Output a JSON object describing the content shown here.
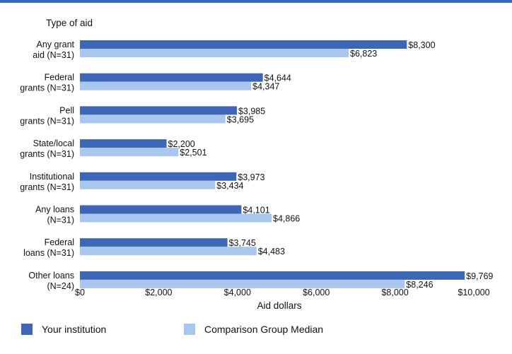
{
  "chart_data": {
    "type": "bar",
    "orientation": "horizontal",
    "title": "",
    "y_axis_title": "Type of aid",
    "xlabel": "Aid dollars",
    "xlim": [
      0,
      10000
    ],
    "x_ticks": [
      0,
      2000,
      4000,
      6000,
      8000,
      10000
    ],
    "x_tick_labels": [
      "$0",
      "$2,000",
      "$4,000",
      "$6,000",
      "$8,000",
      "$10,000"
    ],
    "grid": false,
    "legend_position": "bottom",
    "categories": [
      [
        "Any grant",
        "aid (N=31)"
      ],
      [
        "Federal",
        "grants (N=31)"
      ],
      [
        "Pell",
        "grants (N=31)"
      ],
      [
        "State/local",
        "grants (N=31)"
      ],
      [
        "Institutional",
        "grants (N=31)"
      ],
      [
        "Any loans",
        "(N=31)"
      ],
      [
        "Federal",
        "loans (N=31)"
      ],
      [
        "Other loans",
        "(N=24)"
      ]
    ],
    "series": [
      {
        "name": "Your institution",
        "color": "#3e66b6",
        "values": [
          8300,
          4644,
          3985,
          2200,
          3973,
          4101,
          3745,
          9769
        ],
        "labels": [
          "$8,300",
          "$4,644",
          "$3,985",
          "$2,200",
          "$3,973",
          "$4,101",
          "$3,745",
          "$9,769"
        ]
      },
      {
        "name": "Comparison Group Median",
        "color": "#a9c6ee",
        "values": [
          6823,
          4347,
          3695,
          2501,
          3434,
          4866,
          4483,
          8246
        ],
        "labels": [
          "$6,823",
          "$4,347",
          "$3,695",
          "$2,501",
          "$3,434",
          "$4,866",
          "$4,483",
          "$8,246"
        ]
      }
    ]
  }
}
